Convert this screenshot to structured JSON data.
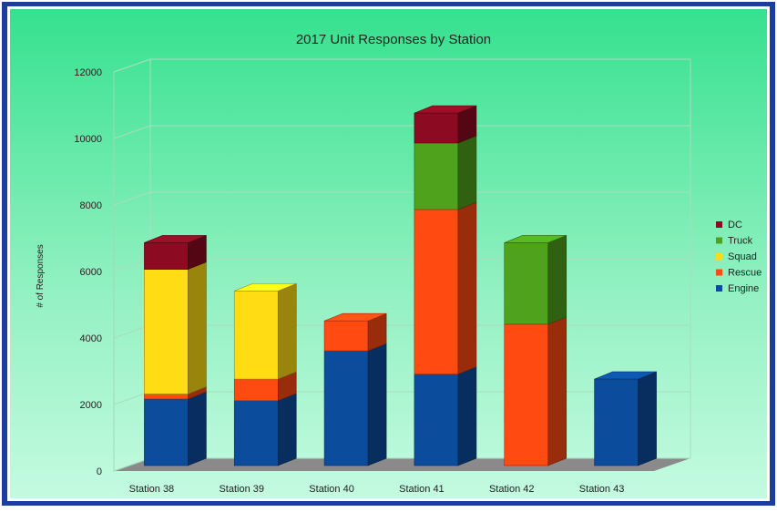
{
  "chart_data": {
    "type": "bar",
    "stacked": true,
    "style": "3d",
    "title": "2017 Unit Responses by Station",
    "xlabel": "",
    "ylabel": "# of Responses",
    "ylim": [
      0,
      12000
    ],
    "yticks": [
      "0",
      "2000",
      "4000",
      "6000",
      "8000",
      "10000",
      "12000"
    ],
    "grid": true,
    "legend_position": "right",
    "categories": [
      "Station 38",
      "Station 39",
      "Station 40",
      "Station 41",
      "Station 42",
      "Station 43"
    ],
    "series": [
      {
        "name": "Engine",
        "color": "#0b4d9c",
        "values": [
          2000,
          1950,
          3450,
          2750,
          0,
          2600
        ]
      },
      {
        "name": "Rescue",
        "color": "#ff4a12",
        "values": [
          150,
          650,
          900,
          4950,
          4250,
          0
        ]
      },
      {
        "name": "Squad",
        "color": "#ffdc14",
        "values": [
          3750,
          2650,
          0,
          0,
          0,
          0
        ]
      },
      {
        "name": "Truck",
        "color": "#4ea21c",
        "values": [
          0,
          0,
          0,
          2000,
          2450,
          0
        ]
      },
      {
        "name": "DC",
        "color": "#8c0a22",
        "values": [
          800,
          0,
          0,
          900,
          0,
          0
        ]
      }
    ],
    "legend_order": [
      "DC",
      "Truck",
      "Squad",
      "Rescue",
      "Engine"
    ]
  }
}
